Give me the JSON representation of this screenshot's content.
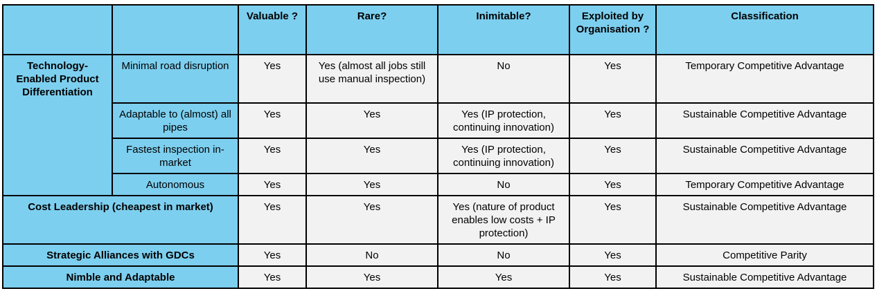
{
  "header": {
    "col_valuable": "Valuable ?",
    "col_rare": "Rare?",
    "col_inimitable": "Inimitable?",
    "col_exploited": "Exploited by Organisation ?",
    "col_classification": "Classification"
  },
  "group": {
    "label": "Technology-Enabled Product Differentiation"
  },
  "rows": [
    {
      "label": "Minimal road disruption",
      "valuable": "Yes",
      "rare": "Yes (almost all jobs still use manual inspection)",
      "inimitable": "No",
      "exploited": "Yes",
      "classification": "Temporary Competitive Advantage"
    },
    {
      "label": "Adaptable to (almost) all pipes",
      "valuable": "Yes",
      "rare": "Yes",
      "inimitable": "Yes (IP protection, continuing innovation)",
      "exploited": "Yes",
      "classification": "Sustainable Competitive Advantage"
    },
    {
      "label": "Fastest inspection in-market",
      "valuable": "Yes",
      "rare": "Yes",
      "inimitable": "Yes (IP protection, continuing innovation)",
      "exploited": "Yes",
      "classification": "Sustainable Competitive Advantage"
    },
    {
      "label": "Autonomous",
      "valuable": "Yes",
      "rare": "Yes",
      "inimitable": "No",
      "exploited": "Yes",
      "classification": "Temporary Competitive Advantage"
    },
    {
      "label": "Cost Leadership (cheapest in market)",
      "valuable": "Yes",
      "rare": "Yes",
      "inimitable": "Yes (nature of product enables low costs + IP protection)",
      "exploited": "Yes",
      "classification": "Sustainable Competitive Advantage"
    },
    {
      "label": "Strategic Alliances with GDCs",
      "valuable": "Yes",
      "rare": "No",
      "inimitable": "No",
      "exploited": "Yes",
      "classification": "Competitive Parity"
    },
    {
      "label": "Nimble and Adaptable",
      "valuable": "Yes",
      "rare": "Yes",
      "inimitable": "Yes",
      "exploited": "Yes",
      "classification": "Sustainable Competitive Advantage"
    }
  ]
}
